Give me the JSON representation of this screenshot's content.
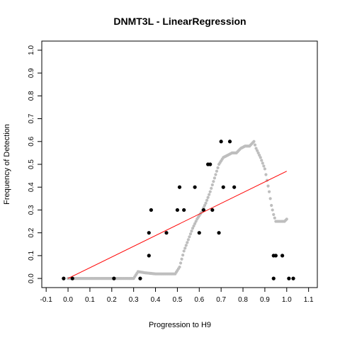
{
  "chart_data": {
    "type": "scatter",
    "title": "DNMT3L - LinearRegression",
    "xlabel": "Progression to H9",
    "ylabel": "Frequency of Detection",
    "xlim": [
      -0.12,
      1.14
    ],
    "ylim": [
      -0.04,
      1.04
    ],
    "xticks": [
      -0.1,
      0.0,
      0.1,
      0.2,
      0.3,
      0.4,
      0.5,
      0.6,
      0.7,
      0.8,
      0.9,
      1.0,
      1.1
    ],
    "xtick_labels": [
      "-0.1",
      "0.0",
      "0.1",
      "0.2",
      "0.3",
      "0.4",
      "0.5",
      "0.6",
      "0.7",
      "0.8",
      "0.9",
      "1.0",
      "1.1"
    ],
    "yticks": [
      0.0,
      0.1,
      0.2,
      0.3,
      0.4,
      0.5,
      0.6,
      0.7,
      0.8,
      0.9,
      1.0
    ],
    "ytick_labels": [
      "0.0",
      "0.1",
      "0.2",
      "0.3",
      "0.4",
      "0.5",
      "0.6",
      "0.7",
      "0.8",
      "0.9",
      "1.0"
    ],
    "grid": false,
    "colors": {
      "points": "#000000",
      "smooth": "#bebebe",
      "regression": "#ff0000"
    },
    "series": [
      {
        "kind": "points",
        "x": [
          -0.02,
          0.02,
          0.21,
          0.33,
          0.37,
          0.37,
          0.38,
          0.45,
          0.5,
          0.51,
          0.53,
          0.58,
          0.6,
          0.62,
          0.64,
          0.65,
          0.66,
          0.69,
          0.7,
          0.71,
          0.74,
          0.76,
          0.94,
          0.94,
          0.95,
          0.98,
          1.01,
          1.03
        ],
        "y": [
          0.0,
          0.0,
          0.0,
          0.0,
          0.1,
          0.2,
          0.3,
          0.2,
          0.3,
          0.4,
          0.3,
          0.4,
          0.2,
          0.3,
          0.5,
          0.5,
          0.3,
          0.2,
          0.6,
          0.4,
          0.6,
          0.4,
          0.0,
          0.1,
          0.1,
          0.1,
          0.0,
          0.0
        ]
      },
      {
        "kind": "smooth",
        "x": [
          0.0,
          0.05,
          0.1,
          0.15,
          0.2,
          0.25,
          0.3,
          0.32,
          0.35,
          0.4,
          0.45,
          0.49,
          0.51,
          0.53,
          0.55,
          0.57,
          0.59,
          0.61,
          0.63,
          0.65,
          0.67,
          0.69,
          0.71,
          0.73,
          0.75,
          0.77,
          0.79,
          0.81,
          0.83,
          0.85,
          0.86,
          0.88,
          0.9,
          0.91,
          0.92,
          0.93,
          0.94,
          0.95,
          0.97,
          0.99,
          1.0
        ],
        "y": [
          0.0,
          0.0,
          0.0,
          0.0,
          0.0,
          0.0,
          0.0,
          0.03,
          0.025,
          0.02,
          0.02,
          0.02,
          0.05,
          0.12,
          0.17,
          0.22,
          0.26,
          0.29,
          0.33,
          0.38,
          0.44,
          0.5,
          0.53,
          0.54,
          0.55,
          0.55,
          0.57,
          0.58,
          0.58,
          0.6,
          0.57,
          0.53,
          0.48,
          0.43,
          0.38,
          0.32,
          0.28,
          0.25,
          0.25,
          0.25,
          0.26
        ]
      },
      {
        "kind": "regression",
        "x": [
          0.0,
          1.0
        ],
        "y": [
          0.0,
          0.47
        ]
      }
    ]
  }
}
